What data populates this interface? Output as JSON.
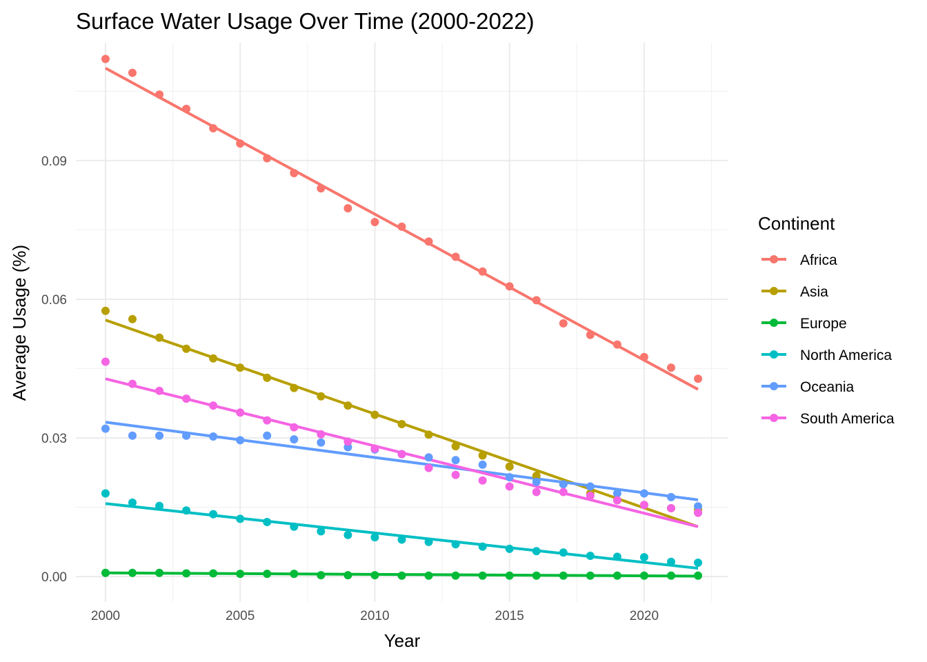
{
  "chart_data": {
    "type": "scatter",
    "title": "Surface Water Usage Over Time (2000-2022)",
    "xlabel": "Year",
    "ylabel": "Average Usage (%)",
    "x": [
      2000,
      2001,
      2002,
      2003,
      2004,
      2005,
      2006,
      2007,
      2008,
      2009,
      2010,
      2011,
      2012,
      2013,
      2014,
      2015,
      2016,
      2017,
      2018,
      2019,
      2020,
      2021,
      2022
    ],
    "xlim": [
      1998.9,
      2023.1
    ],
    "ylim": [
      -0.0055,
      0.1155
    ],
    "xticks": [
      2000,
      2005,
      2010,
      2015,
      2020
    ],
    "xtick_labels": [
      "2000",
      "2005",
      "2010",
      "2015",
      "2020"
    ],
    "yticks": [
      0,
      0.03,
      0.06,
      0.09
    ],
    "ytick_labels": [
      "0.00",
      "0.03",
      "0.06",
      "0.09"
    ],
    "grid": true,
    "legend": {
      "title": "Continent",
      "position": "right"
    },
    "series": [
      {
        "name": "Africa",
        "color": "#F8766D",
        "values": [
          0.112,
          0.109,
          0.1043,
          0.1012,
          0.097,
          0.0937,
          0.0905,
          0.0873,
          0.084,
          0.0797,
          0.0767,
          0.0757,
          0.0725,
          0.0692,
          0.066,
          0.0628,
          0.0598,
          0.0548,
          0.0523,
          0.0502,
          0.0475,
          0.0452,
          0.0428
        ],
        "trend": [
          0.11,
          0.0405
        ]
      },
      {
        "name": "Asia",
        "color": "#B79F00",
        "values": [
          0.0575,
          0.0557,
          0.0517,
          0.0493,
          0.0472,
          0.0452,
          0.043,
          0.0408,
          0.039,
          0.037,
          0.035,
          0.033,
          0.0307,
          0.0282,
          0.0262,
          0.0238,
          0.0218,
          0.02,
          0.018,
          0.0165,
          0.0155,
          0.0148,
          0.0145
        ],
        "trend": [
          0.0555,
          0.0108
        ]
      },
      {
        "name": "Europe",
        "color": "#00BA38",
        "values": [
          0.0008,
          0.0008,
          0.0008,
          0.0007,
          0.0007,
          0.0006,
          0.0006,
          0.0006,
          0.0003,
          0.0003,
          0.0003,
          0.0002,
          0.0002,
          0.0002,
          0.0002,
          0.0002,
          0.0002,
          0.0002,
          0.0002,
          0.0002,
          0.0002,
          0.0002,
          0.0002
        ],
        "trend": [
          0.0008,
          0.0001
        ]
      },
      {
        "name": "North America",
        "color": "#00BFC4",
        "values": [
          0.018,
          0.016,
          0.0153,
          0.0143,
          0.0135,
          0.0125,
          0.0118,
          0.0108,
          0.0098,
          0.009,
          0.0085,
          0.008,
          0.0075,
          0.007,
          0.0065,
          0.006,
          0.0055,
          0.0052,
          0.0045,
          0.0043,
          0.0042,
          0.0032,
          0.003
        ],
        "trend": [
          0.0158,
          0.0018
        ]
      },
      {
        "name": "Oceania",
        "color": "#619CFF",
        "values": [
          0.032,
          0.0305,
          0.0305,
          0.0305,
          0.0303,
          0.0295,
          0.0305,
          0.0297,
          0.029,
          0.028,
          0.0275,
          0.0265,
          0.0258,
          0.0252,
          0.0242,
          0.0215,
          0.0205,
          0.02,
          0.0195,
          0.018,
          0.018,
          0.0172,
          0.0152
        ],
        "trend": [
          0.0334,
          0.0166
        ]
      },
      {
        "name": "South America",
        "color": "#F564E3",
        "values": [
          0.0465,
          0.0417,
          0.0402,
          0.0385,
          0.037,
          0.0355,
          0.0338,
          0.0323,
          0.0308,
          0.0292,
          0.0277,
          0.0265,
          0.0235,
          0.022,
          0.0208,
          0.0195,
          0.0183,
          0.0183,
          0.0175,
          0.0165,
          0.0155,
          0.0148,
          0.0138
        ],
        "trend": [
          0.0428,
          0.0108
        ]
      }
    ]
  }
}
